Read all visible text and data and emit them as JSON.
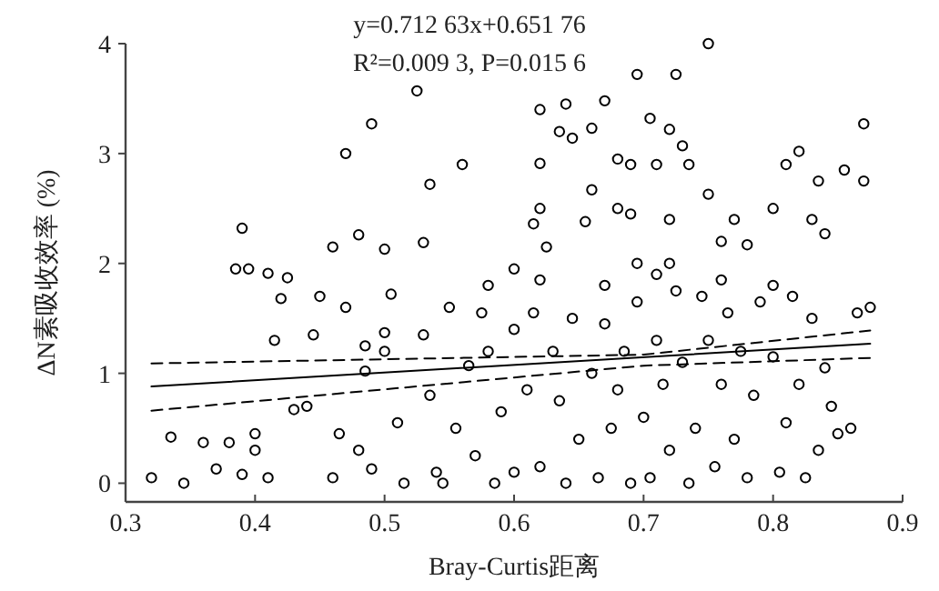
{
  "chart_data": {
    "type": "scatter",
    "xlabel": "Bray-Curtis距离",
    "ylabel": "ΔN素吸收效率 (%)",
    "xlim": [
      0.3,
      0.9
    ],
    "ylim": [
      -0.17,
      4
    ],
    "xticks": [
      0.3,
      0.4,
      0.5,
      0.6,
      0.7,
      0.8,
      0.9
    ],
    "yticks": [
      0,
      1,
      2,
      3,
      4
    ],
    "annotations": [
      "y=0.712 63x+0.651 76",
      "R²=0.009 3, P=0.015 6"
    ],
    "series": [
      {
        "marker": "circle",
        "color": "#000000",
        "x": [
          0.39,
          0.385,
          0.395,
          0.41,
          0.425,
          0.47,
          0.49,
          0.525,
          0.535,
          0.56,
          0.62,
          0.64,
          0.635,
          0.67,
          0.695,
          0.75,
          0.725,
          0.705,
          0.73,
          0.72,
          0.66,
          0.645,
          0.62,
          0.66,
          0.68,
          0.69,
          0.71,
          0.735,
          0.82,
          0.81,
          0.835,
          0.87,
          0.87,
          0.855,
          0.75,
          0.68,
          0.62,
          0.615,
          0.655,
          0.69,
          0.72,
          0.77,
          0.8,
          0.83,
          0.84,
          0.78,
          0.76,
          0.72,
          0.695,
          0.625,
          0.53,
          0.5,
          0.48,
          0.46,
          0.32,
          0.335,
          0.345,
          0.36,
          0.37,
          0.38,
          0.39,
          0.4,
          0.4,
          0.41,
          0.415,
          0.42,
          0.43,
          0.44,
          0.445,
          0.45,
          0.46,
          0.465,
          0.47,
          0.48,
          0.485,
          0.485,
          0.49,
          0.5,
          0.5,
          0.505,
          0.51,
          0.515,
          0.53,
          0.535,
          0.54,
          0.545,
          0.55,
          0.555,
          0.565,
          0.57,
          0.575,
          0.58,
          0.585,
          0.59,
          0.6,
          0.6,
          0.61,
          0.615,
          0.62,
          0.63,
          0.635,
          0.64,
          0.645,
          0.65,
          0.66,
          0.665,
          0.67,
          0.675,
          0.68,
          0.685,
          0.69,
          0.695,
          0.7,
          0.705,
          0.71,
          0.715,
          0.72,
          0.725,
          0.73,
          0.735,
          0.74,
          0.745,
          0.75,
          0.755,
          0.76,
          0.765,
          0.77,
          0.775,
          0.78,
          0.785,
          0.79,
          0.8,
          0.805,
          0.81,
          0.815,
          0.82,
          0.825,
          0.83,
          0.835,
          0.84,
          0.845,
          0.85,
          0.86,
          0.865,
          0.875,
          0.58,
          0.6,
          0.62,
          0.67,
          0.71,
          0.76,
          0.8
        ],
        "values": [
          2.32,
          1.95,
          1.95,
          1.91,
          1.87,
          3.0,
          3.27,
          3.57,
          2.72,
          2.9,
          3.4,
          3.45,
          3.2,
          3.48,
          3.72,
          4.0,
          3.72,
          3.32,
          3.07,
          3.22,
          3.23,
          3.14,
          2.91,
          2.67,
          2.95,
          2.9,
          2.9,
          2.9,
          3.02,
          2.9,
          2.75,
          3.27,
          2.75,
          2.85,
          2.63,
          2.5,
          2.5,
          2.36,
          2.38,
          2.45,
          2.4,
          2.4,
          2.5,
          2.4,
          2.27,
          2.17,
          2.2,
          2.0,
          2.0,
          2.15,
          2.19,
          2.13,
          2.26,
          2.15,
          0.05,
          0.42,
          0.0,
          0.37,
          0.13,
          0.37,
          0.08,
          0.45,
          0.3,
          0.05,
          1.3,
          1.68,
          0.67,
          0.7,
          1.35,
          1.7,
          0.05,
          0.45,
          1.6,
          0.3,
          1.25,
          1.02,
          0.13,
          1.37,
          1.2,
          1.72,
          0.55,
          0.0,
          1.35,
          0.8,
          0.1,
          0.0,
          1.6,
          0.5,
          1.07,
          0.25,
          1.55,
          1.2,
          0.0,
          0.65,
          1.4,
          0.1,
          0.85,
          1.55,
          0.15,
          1.2,
          0.75,
          0.0,
          1.5,
          0.4,
          1.0,
          0.05,
          1.45,
          0.5,
          0.85,
          1.2,
          0.0,
          1.65,
          0.6,
          0.05,
          1.3,
          0.9,
          0.3,
          1.75,
          1.1,
          0.0,
          0.5,
          1.7,
          1.3,
          0.15,
          0.9,
          1.55,
          0.4,
          1.2,
          0.05,
          0.8,
          1.65,
          1.15,
          0.1,
          0.55,
          1.7,
          0.9,
          0.05,
          1.5,
          0.3,
          1.05,
          0.7,
          0.45,
          0.5,
          1.55,
          1.6,
          1.8,
          1.95,
          1.85,
          1.8,
          1.9,
          1.85,
          1.8
        ]
      },
      {
        "type": "line",
        "color": "#000000",
        "line_style": "solid",
        "x": [
          0.32,
          0.875
        ],
        "values": [
          0.88,
          1.27
        ]
      },
      {
        "type": "line",
        "color": "#000000",
        "line_style": "dashed",
        "x": [
          0.32,
          0.7,
          0.875
        ],
        "values": [
          0.66,
          1.07,
          1.14
        ]
      },
      {
        "type": "line",
        "color": "#000000",
        "line_style": "dashed",
        "x": [
          0.32,
          0.7,
          0.875
        ],
        "values": [
          1.09,
          1.17,
          1.39
        ]
      }
    ]
  }
}
